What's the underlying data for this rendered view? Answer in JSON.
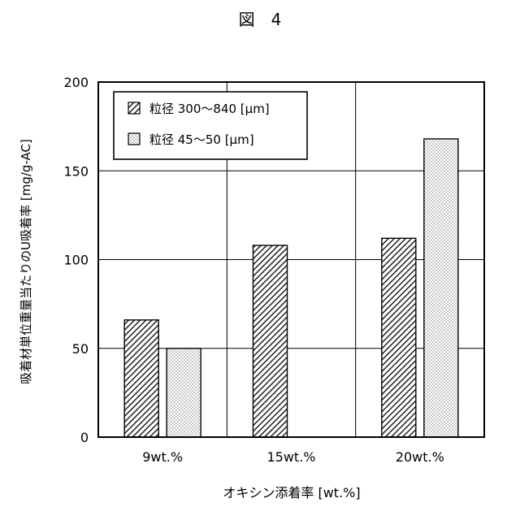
{
  "figure_label": "図　4",
  "chart_data": {
    "type": "bar",
    "title": "",
    "xlabel": "オキシン添着率 [wt.%]",
    "ylabel": "吸着材単位重量当たりのU吸着率 [mg/g-AC]",
    "categories": [
      "9wt.%",
      "15wt.%",
      "20wt.%"
    ],
    "ylim": [
      0,
      200
    ],
    "yticks": [
      0,
      50,
      100,
      150,
      200
    ],
    "grid": true,
    "legend_position": "top-left",
    "series": [
      {
        "name": "粒径 300〜840 [μm]",
        "values": [
          66,
          108,
          112
        ],
        "pattern": "diagonal-hatch"
      },
      {
        "name": "粒径 45〜50 [μm]",
        "values": [
          50,
          null,
          168
        ],
        "pattern": "dots"
      }
    ]
  }
}
